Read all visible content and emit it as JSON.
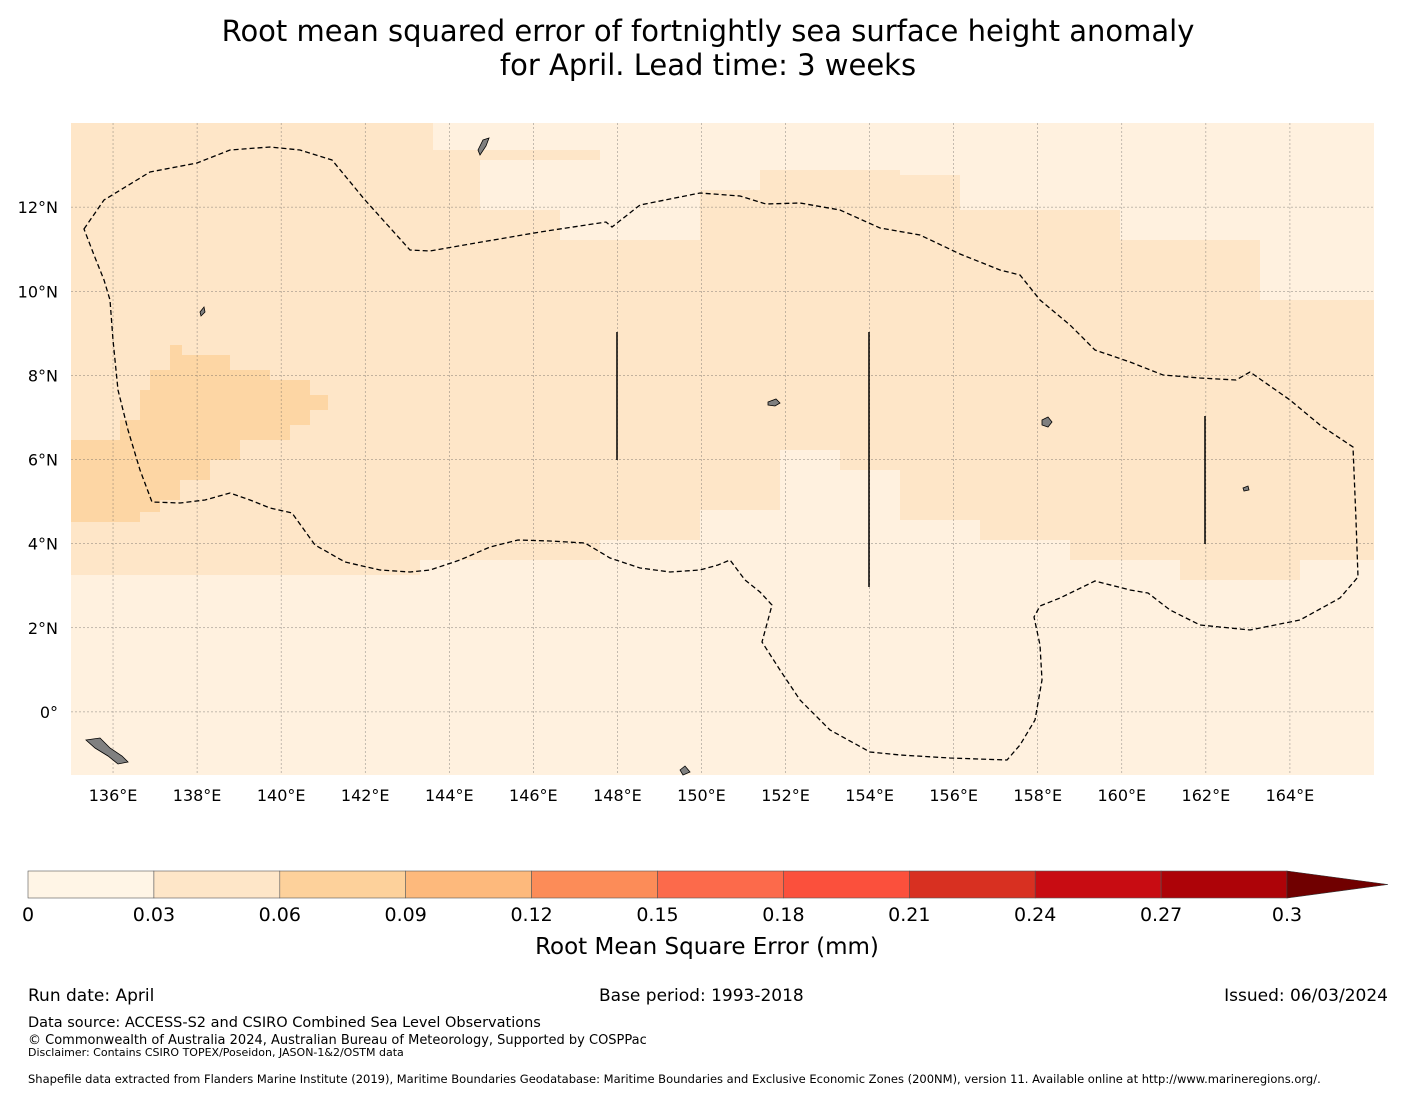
{
  "title": {
    "line1": "Root mean squared error of fortnightly sea surface height anomaly",
    "line2": "for April. Lead time: 3 weeks"
  },
  "map": {
    "lon_range": [
      135,
      166
    ],
    "lat_range": [
      -1.5,
      14
    ],
    "lon_ticks": [
      "136°E",
      "138°E",
      "140°E",
      "142°E",
      "144°E",
      "146°E",
      "148°E",
      "150°E",
      "152°E",
      "154°E",
      "156°E",
      "158°E",
      "160°E",
      "162°E",
      "164°E"
    ],
    "lat_ticks": [
      "12°N",
      "10°N",
      "8°N",
      "6°N",
      "4°N",
      "2°N",
      "0°"
    ],
    "grid": true,
    "land_color": "#808080",
    "boundary_style": "dashed"
  },
  "colorbar": {
    "label": "Root Mean Square Error (mm)",
    "tick_labels": [
      "0",
      "0.03",
      "0.06",
      "0.09",
      "0.12",
      "0.15",
      "0.18",
      "0.21",
      "0.24",
      "0.27",
      "0.3"
    ],
    "colors": [
      "#fff5e6",
      "#fee6c8",
      "#fdd19b",
      "#fdb97c",
      "#fc8c58",
      "#fc6a4b",
      "#fb503c",
      "#d83021",
      "#c80c12",
      "#ad0308"
    ],
    "extend_color": "#700000",
    "extend": "max"
  },
  "footer": {
    "run_date": "Run date: April",
    "base_period": "Base period: 1993-2018",
    "issued": "Issued: 06/03/2024",
    "data_source": "Data source: ACCESS-S2 and CSIRO Combined Sea Level Observations",
    "copyright": "© Commonwealth of Australia 2024, Australian Bureau of Meteorology, Supported by COSPPac",
    "disclaimer": "Disclaimer: Contains CSIRO TOPEX/Poseidon, JASON-1&2/OSTM data",
    "shapefile": "Shapefile data extracted from Flanders Marine Institute (2019), Maritime Boundaries Geodatabase: Maritime Boundaries and Exclusive Economic Zones (200NM), version 11. Available online at http://www.marineregions.org/."
  }
}
